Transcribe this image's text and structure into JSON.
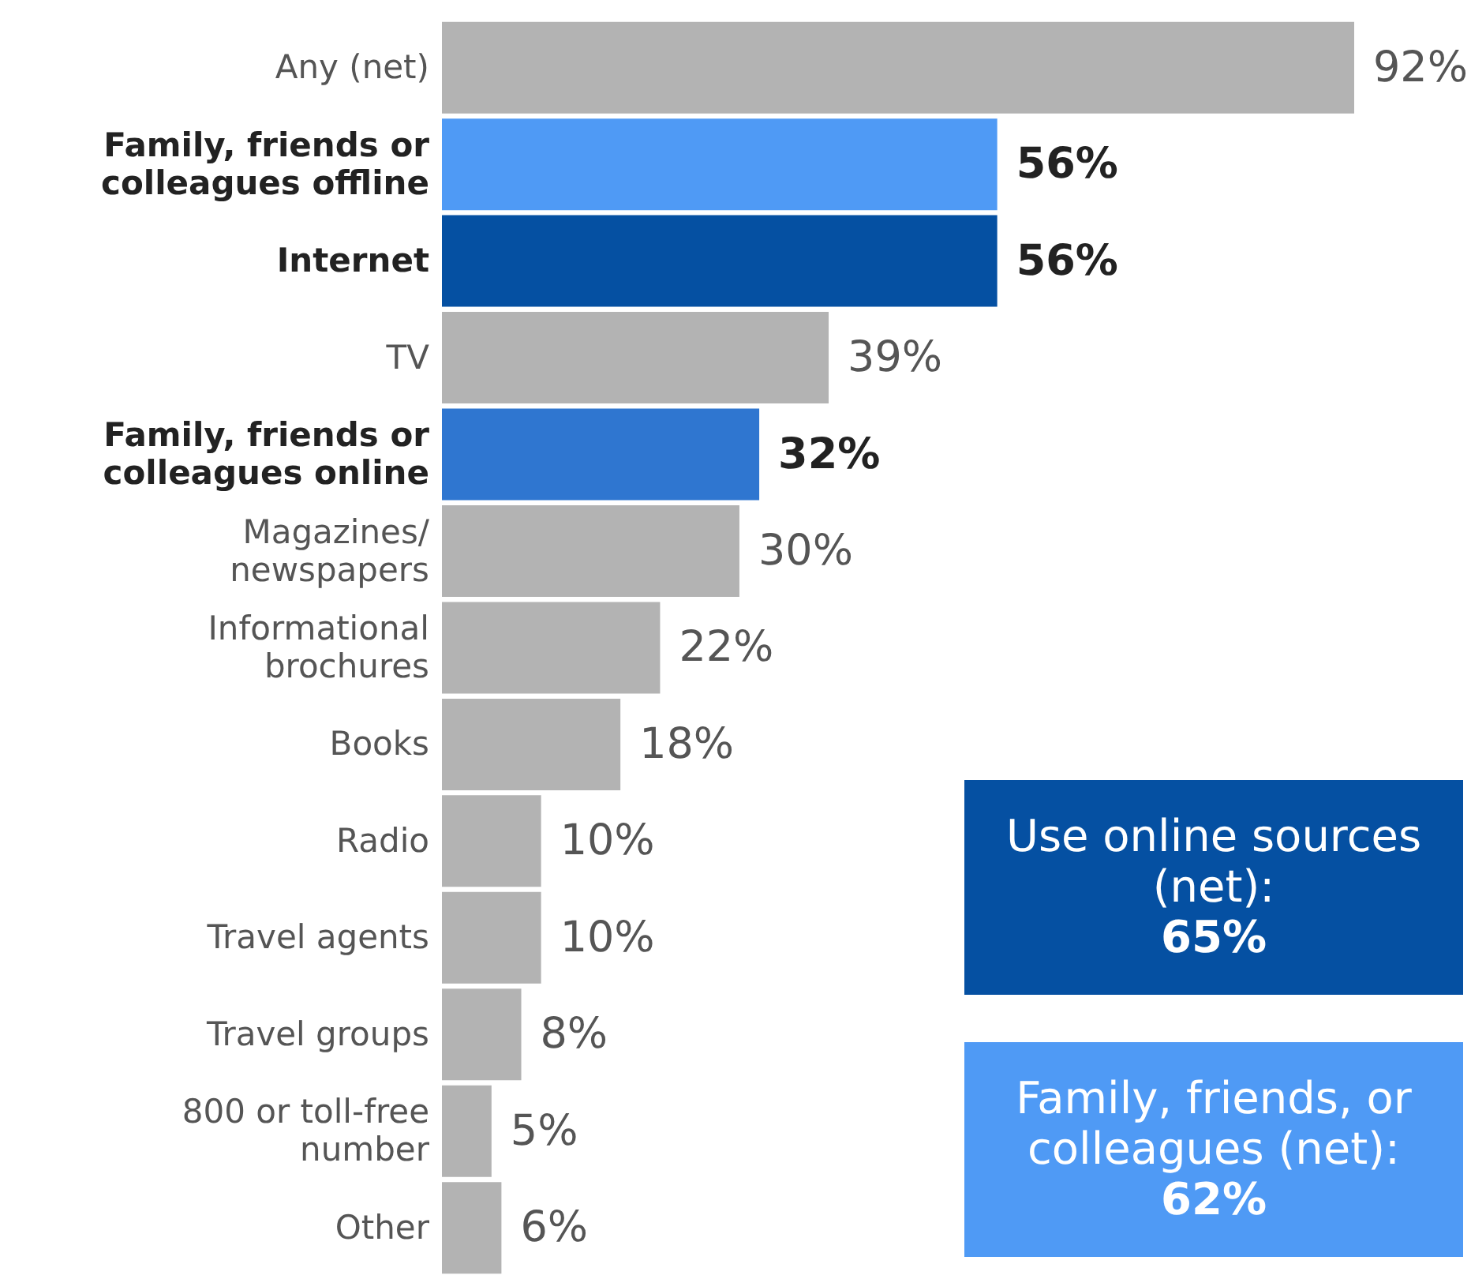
{
  "chart_data": {
    "type": "bar",
    "orientation": "horizontal",
    "categories": [
      "Any (net)",
      "Family, friends or colleagues offline",
      "Internet",
      "TV",
      "Family, friends or colleagues online",
      "Magazines/newspapers",
      "Informational brochures",
      "Books",
      "Radio",
      "Travel agents",
      "Travel groups",
      "800 or toll-free number",
      "Other"
    ],
    "values": [
      92,
      56,
      56,
      39,
      32,
      30,
      22,
      18,
      10,
      10,
      8,
      5,
      6
    ],
    "colors": [
      "#b3b3b3",
      "#4f9af5",
      "#0550a2",
      "#b3b3b3",
      "#2f76d0",
      "#b3b3b3",
      "#b3b3b3",
      "#b3b3b3",
      "#b3b3b3",
      "#b3b3b3",
      "#b3b3b3",
      "#b3b3b3",
      "#b3b3b3"
    ],
    "value_labels": [
      "92%",
      "56%",
      "56%",
      "39%",
      "32%",
      "30%",
      "22%",
      "18%",
      "10%",
      "10%",
      "8%",
      "5%",
      "6%"
    ],
    "annotations": [
      "Use online sources (net): 65%",
      "Family, friends, or colleagues (net): 62%"
    ]
  }
}
